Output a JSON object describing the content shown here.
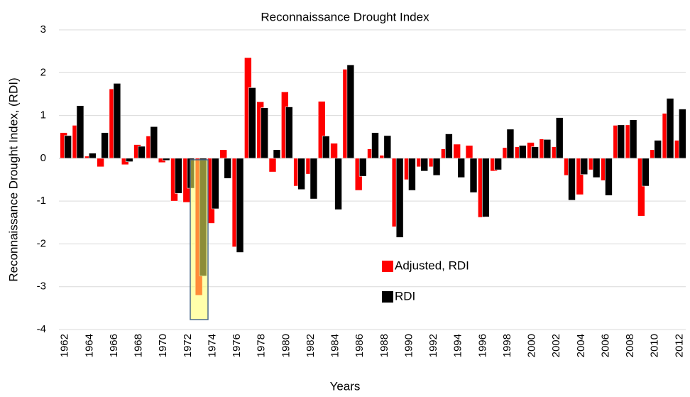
{
  "chart_data": {
    "type": "bar",
    "title": "Reconnaissance Drought Index",
    "x_label": "Years",
    "y_label": "Reconnaissance Drought Index,  (RDI)",
    "categories": [
      "1962",
      null,
      "1964",
      null,
      "1966",
      null,
      "1968",
      null,
      "1970",
      null,
      "1972",
      null,
      "1974",
      null,
      "1976",
      null,
      "1978",
      null,
      "1980",
      null,
      "1982",
      null,
      "1984",
      null,
      "1986",
      null,
      "1988",
      null,
      "1990",
      null,
      "1992",
      null,
      "1994",
      null,
      "1996",
      null,
      "1998",
      null,
      "2000",
      null,
      "2002",
      null,
      "2004",
      null,
      "2006",
      null,
      "2008",
      null,
      "2010",
      null,
      "2012"
    ],
    "series": [
      {
        "name": "Adjusted, RDI",
        "color": "#ff0000",
        "values": [
          0.6,
          0.77,
          0.05,
          -0.2,
          1.62,
          -0.15,
          0.32,
          0.52,
          -0.1,
          -1.0,
          -1.03,
          -3.2,
          -1.52,
          0.2,
          -2.07,
          2.35,
          1.32,
          -0.32,
          1.55,
          -0.65,
          -0.37,
          1.33,
          0.35,
          2.08,
          -0.75,
          0.22,
          0.07,
          -1.6,
          -0.5,
          -0.2,
          -0.2,
          0.22,
          0.33,
          0.3,
          -1.38,
          -0.3,
          0.25,
          0.27,
          0.37,
          0.45,
          0.27,
          -0.4,
          -0.85,
          -0.27,
          -0.52,
          0.77,
          0.78,
          -1.35,
          0.2,
          1.05,
          0.42
        ]
      },
      {
        "name": "RDI",
        "color": "#000000",
        "values": [
          0.53,
          1.23,
          0.12,
          0.6,
          1.75,
          -0.08,
          0.28,
          0.74,
          -0.05,
          -0.82,
          -0.7,
          -2.75,
          -1.18,
          -0.47,
          -2.2,
          1.65,
          1.18,
          0.2,
          1.2,
          -0.73,
          -0.95,
          0.52,
          -1.2,
          2.18,
          -0.42,
          0.6,
          0.53,
          -1.85,
          -0.75,
          -0.3,
          -0.4,
          0.57,
          -0.45,
          -0.8,
          -1.37,
          -0.27,
          0.68,
          0.3,
          0.27,
          0.44,
          0.95,
          -0.98,
          -0.38,
          -0.45,
          -0.87,
          0.78,
          0.9,
          -0.65,
          0.42,
          1.4,
          1.15
        ]
      }
    ],
    "ylim": [
      -4,
      3
    ],
    "yticks": [
      -4,
      -3,
      -2,
      -1,
      0,
      1,
      2,
      3
    ],
    "grid": true
  }
}
